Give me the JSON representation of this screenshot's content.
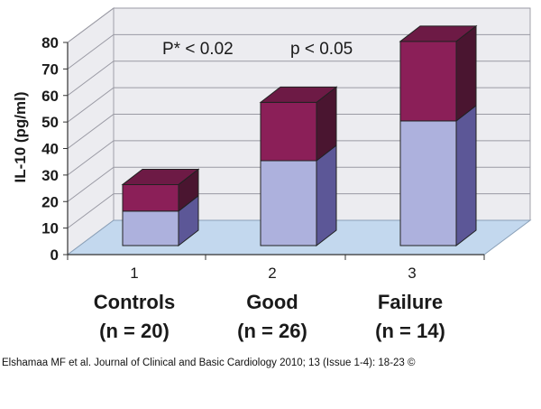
{
  "chart_data": {
    "type": "bar",
    "stacked": true,
    "three_d": true,
    "categories": [
      "1",
      "2",
      "3"
    ],
    "category_names": [
      "Controls",
      "Good",
      "Failure"
    ],
    "category_counts": [
      "(n = 20)",
      "(n = 26)",
      "(n = 14)"
    ],
    "series": [
      {
        "values": [
          13,
          32,
          47
        ],
        "color": "#adb1dd"
      },
      {
        "values": [
          10,
          22,
          30
        ],
        "color": "#8b1f58"
      }
    ],
    "ylabel": "IL-10 (pg/ml)",
    "ylim": [
      0,
      80
    ],
    "yticks": [
      "0",
      "10",
      "20",
      "30",
      "40",
      "50",
      "60",
      "70",
      "80"
    ],
    "grid": true,
    "annotations": [
      "P* < 0.02",
      "p < 0.05"
    ]
  },
  "citation": "Elshamaa MF et al. Journal of Clinical and Basic Cardiology 2010; 13 (Issue 1-4): 18-23 ©"
}
